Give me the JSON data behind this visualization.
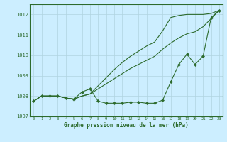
{
  "xlabel": "Graphe pression niveau de la mer (hPa)",
  "background_color": "#cceeff",
  "grid_color": "#b0d4e0",
  "line_color": "#2d6b2d",
  "xlim_min": -0.5,
  "xlim_max": 23.4,
  "ylim_min": 1007.0,
  "ylim_max": 1012.5,
  "yticks": [
    1007,
    1008,
    1009,
    1010,
    1011,
    1012
  ],
  "xticks": [
    0,
    1,
    2,
    3,
    4,
    5,
    6,
    7,
    8,
    9,
    10,
    11,
    12,
    13,
    14,
    15,
    16,
    17,
    18,
    19,
    20,
    21,
    22,
    23
  ],
  "hours": [
    0,
    1,
    2,
    3,
    4,
    5,
    6,
    7,
    8,
    9,
    10,
    11,
    12,
    13,
    14,
    15,
    16,
    17,
    18,
    19,
    20,
    21,
    22,
    23
  ],
  "line_markers": [
    1007.75,
    1008.0,
    1008.0,
    1008.0,
    1007.9,
    1007.85,
    1008.2,
    1008.35,
    1007.75,
    1007.65,
    1007.65,
    1007.65,
    1007.7,
    1007.7,
    1007.65,
    1007.65,
    1007.8,
    1008.7,
    1009.55,
    1010.05,
    1009.55,
    1009.95,
    1011.85,
    1012.2
  ],
  "line_mid": [
    1007.75,
    1008.0,
    1008.0,
    1008.0,
    1007.9,
    1007.85,
    1008.0,
    1008.1,
    1008.35,
    1008.6,
    1008.85,
    1009.1,
    1009.35,
    1009.55,
    1009.75,
    1009.95,
    1010.3,
    1010.6,
    1010.85,
    1011.05,
    1011.15,
    1011.4,
    1011.8,
    1012.2
  ],
  "line_top": [
    1007.75,
    1008.0,
    1008.0,
    1008.0,
    1007.9,
    1007.85,
    1008.0,
    1008.1,
    1008.5,
    1008.9,
    1009.3,
    1009.65,
    1009.95,
    1010.2,
    1010.45,
    1010.65,
    1011.2,
    1011.85,
    1011.95,
    1012.0,
    1012.0,
    1012.0,
    1012.05,
    1012.2
  ]
}
